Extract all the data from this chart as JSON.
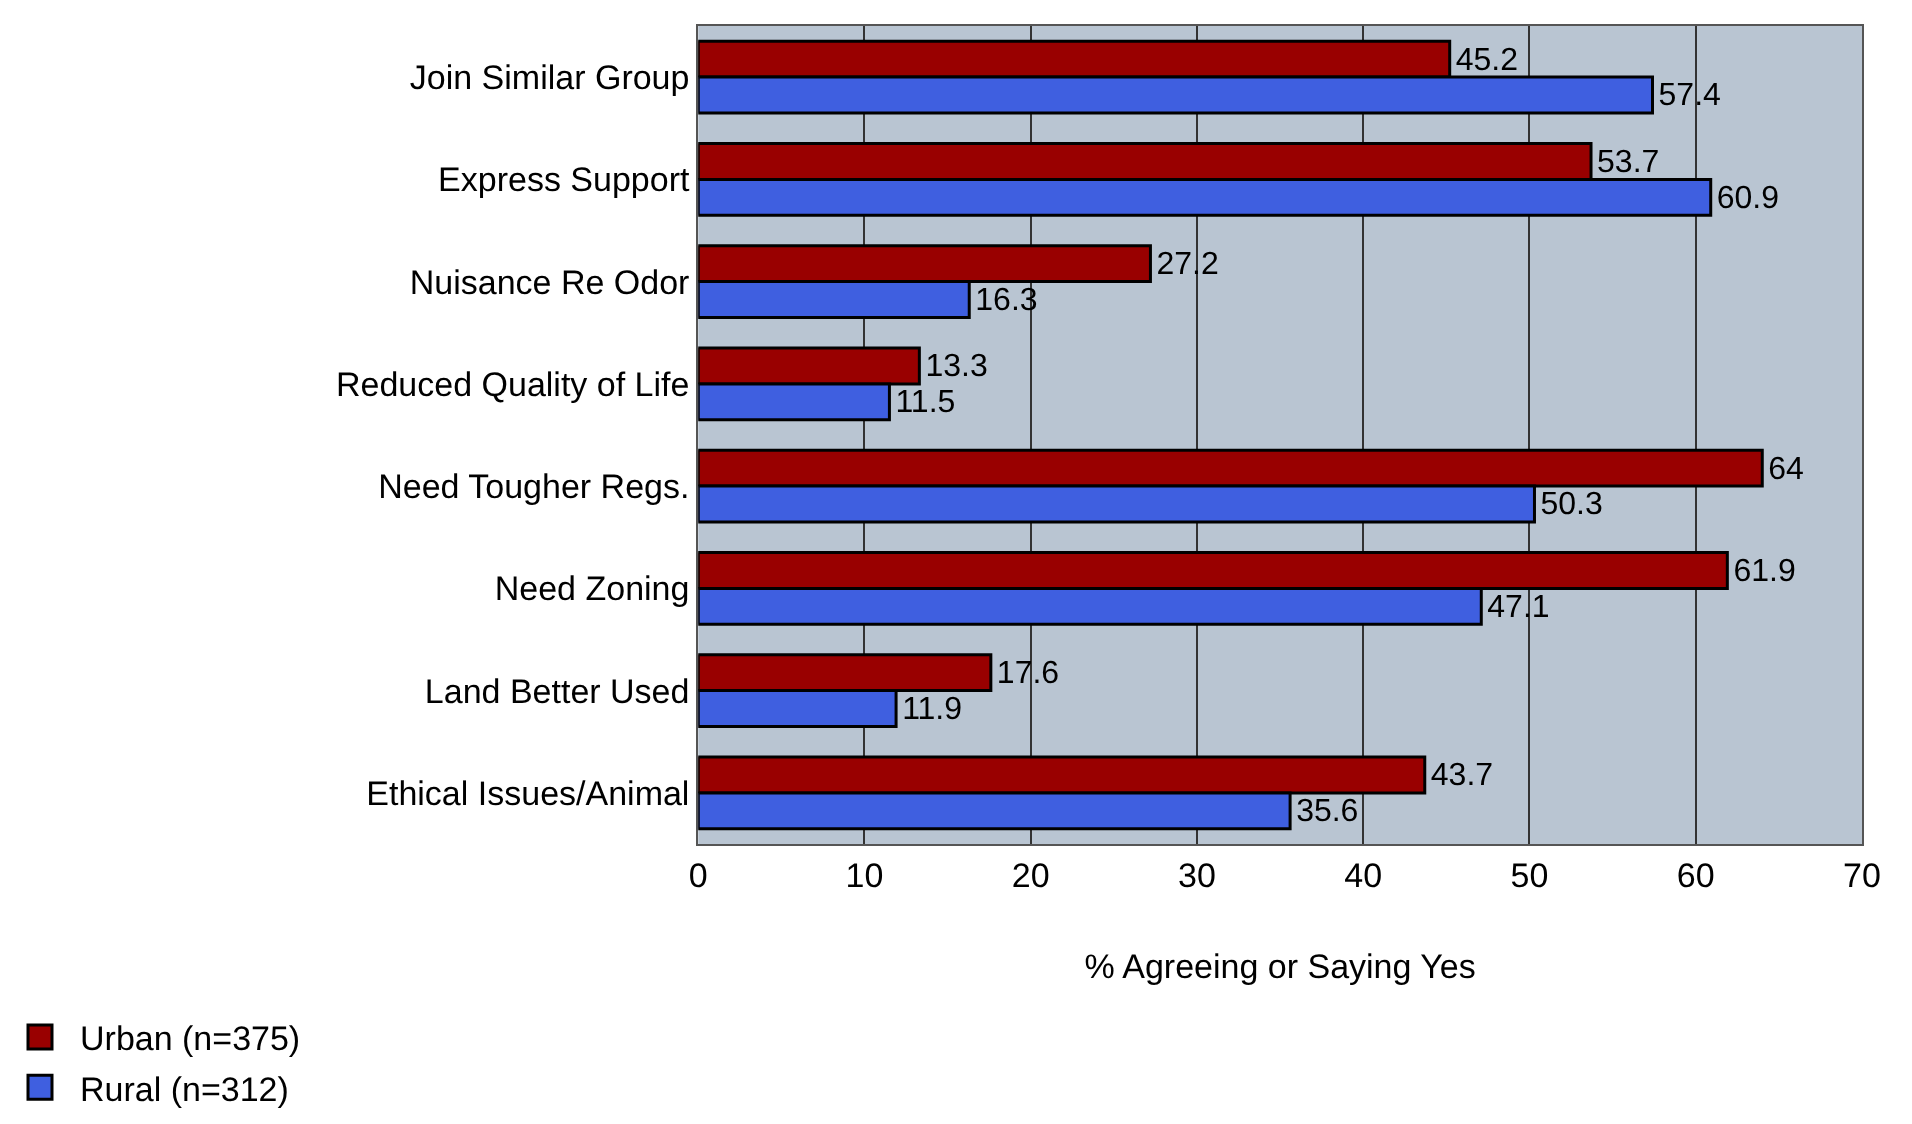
{
  "chart_data": {
    "type": "bar",
    "orientation": "horizontal",
    "xlabel": "% Agreeing or Saying Yes",
    "categories": [
      "Join Similar Group",
      "Express Support",
      "Nuisance Re Odor",
      "Reduced Quality of Life",
      "Need Tougher Regs.",
      "Need Zoning",
      "Land Better Used",
      "Ethical Issues/Animal"
    ],
    "series": [
      {
        "name": "Urban (n=375)",
        "color": "#990000",
        "values": [
          45.2,
          53.7,
          27.2,
          13.3,
          64,
          61.9,
          17.6,
          43.7
        ]
      },
      {
        "name": "Rural (n=312)",
        "color": "#3f5fe0",
        "values": [
          57.4,
          60.9,
          16.3,
          11.5,
          50.3,
          47.1,
          11.9,
          35.6
        ]
      }
    ],
    "xlim": [
      0,
      70
    ],
    "xticks": [
      0,
      10,
      20,
      30,
      40,
      50,
      60,
      70
    ],
    "grid": "x",
    "data_labels": true,
    "legend": "bottom left"
  }
}
